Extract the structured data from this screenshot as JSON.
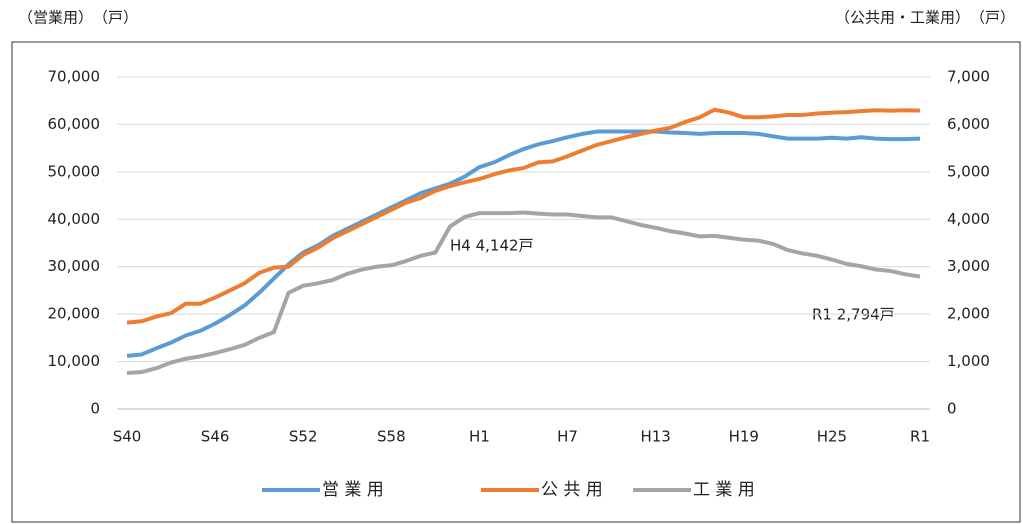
{
  "chart_data": {
    "type": "line",
    "ylabel": "（営業用）　（戸）",
    "y2label": "（公共用・工業用）　（戸）",
    "categories": [
      "S40",
      null,
      null,
      null,
      null,
      null,
      "S46",
      null,
      null,
      null,
      null,
      null,
      "S52",
      null,
      null,
      null,
      null,
      null,
      "S58",
      null,
      null,
      null,
      null,
      null,
      "H1",
      null,
      null,
      null,
      null,
      null,
      "H7",
      null,
      null,
      null,
      null,
      null,
      "H13",
      null,
      null,
      null,
      null,
      null,
      "H19",
      null,
      null,
      null,
      null,
      null,
      "H25",
      null,
      null,
      null,
      null,
      null,
      "R1"
    ],
    "ylim": [
      0,
      70000
    ],
    "yticks": [
      0,
      {
        "value": 10000,
        "label": "10,000"
      },
      {
        "value": 20000,
        "label": "20,000"
      },
      {
        "value": 30000,
        "label": "30,000"
      },
      {
        "value": 40000,
        "label": "40,000"
      },
      {
        "value": 50000,
        "label": "50,000"
      },
      {
        "value": 60000,
        "label": "60,000"
      },
      {
        "value": 70000,
        "label": "70,000"
      }
    ],
    "y2lim": [
      0,
      7000
    ],
    "y2ticks": [
      0,
      {
        "value": 1000,
        "label": "1,000"
      },
      {
        "value": 2000,
        "label": "2,000"
      },
      {
        "value": 3000,
        "label": "3,000"
      },
      {
        "value": 4000,
        "label": "4,000"
      },
      {
        "value": 5000,
        "label": "5,000"
      },
      {
        "value": 6000,
        "label": "6,000"
      },
      {
        "value": 7000,
        "label": "7,000"
      }
    ],
    "grid": true,
    "legend": "bottom",
    "series": [
      {
        "name": "営 業 用",
        "color": "#5b9bd5",
        "values": [
          11200,
          11500,
          12800,
          14000,
          15500,
          16500,
          18000,
          19800,
          21800,
          24500,
          27500,
          30500,
          33000,
          34500,
          36500,
          38000,
          39500,
          41000,
          42500,
          44000,
          45500,
          46500,
          47500,
          49000,
          51000,
          52000,
          53500,
          54800,
          55800,
          56500,
          57300,
          58000,
          58500,
          58500,
          58500,
          58500,
          58500,
          58300,
          58200,
          58000,
          58200,
          58200,
          58200,
          58000,
          57500,
          57000,
          57000,
          57000,
          57200,
          57000,
          57300,
          57000,
          56900,
          56900,
          57000
        ]
      },
      {
        "name": "公 共 用",
        "color": "#ed7d31",
        "axis": "y2",
        "values": [
          1820,
          1850,
          1950,
          2020,
          2220,
          2220,
          2350,
          2500,
          2650,
          2870,
          2980,
          3000,
          3250,
          3400,
          3600,
          3750,
          3900,
          4050,
          4200,
          4350,
          4450,
          4600,
          4700,
          4780,
          4850,
          4950,
          5030,
          5080,
          5200,
          5220,
          5330,
          5450,
          5570,
          5650,
          5730,
          5800,
          5870,
          5930,
          6050,
          6150,
          6310,
          6250,
          6150,
          6150,
          6170,
          6200,
          6200,
          6230,
          6250,
          6260,
          6280,
          6300,
          6290,
          6300,
          6290
        ]
      },
      {
        "name": "工 業 用",
        "color": "#a5a5a5",
        "axis": "y2",
        "values": [
          760,
          780,
          860,
          980,
          1060,
          1110,
          1180,
          1260,
          1350,
          1500,
          1620,
          2450,
          2600,
          2650,
          2720,
          2850,
          2940,
          3000,
          3030,
          3120,
          3230,
          3300,
          3850,
          4050,
          4130,
          4130,
          4130,
          4142,
          4120,
          4100,
          4100,
          4070,
          4040,
          4040,
          3960,
          3880,
          3820,
          3750,
          3700,
          3640,
          3650,
          3610,
          3570,
          3550,
          3480,
          3350,
          3280,
          3230,
          3150,
          3060,
          3010,
          2940,
          2910,
          2840,
          2794
        ]
      }
    ],
    "annotations": [
      "H4 4,142戸",
      "R1 2,794戸"
    ]
  }
}
